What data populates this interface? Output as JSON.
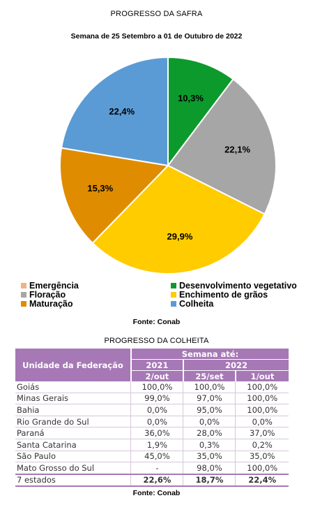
{
  "chart_title": "PROGRESSO DA SAFRA",
  "chart_subtitle": "Semana de 25 Setembro a 01 de Outubro de 2022",
  "chart_data": {
    "type": "pie",
    "title": "PROGRESSO DA SAFRA",
    "subtitle": "Semana de 25 Setembro a 01 de Outubro de 2022",
    "slices": [
      {
        "name": "Emergência",
        "value": 0.0,
        "label": "",
        "color": "#f4b183"
      },
      {
        "name": "Desenvolvimento vegetativo",
        "value": 10.3,
        "label": "10,3%",
        "color": "#0c9a2c"
      },
      {
        "name": "Floração",
        "value": 22.1,
        "label": "22,1%",
        "color": "#a6a6a6"
      },
      {
        "name": "Enchimento de grãos",
        "value": 29.9,
        "label": "29,9%",
        "color": "#ffcc00"
      },
      {
        "name": "Maturação",
        "value": 15.3,
        "label": "15,3%",
        "color": "#e08c00"
      },
      {
        "name": "Colheita",
        "value": 22.4,
        "label": "22,4%",
        "color": "#5b9bd5"
      }
    ],
    "legend_position": "bottom"
  },
  "legend": [
    {
      "name": "Emergência",
      "color": "#f4b183"
    },
    {
      "name": "Desenvolvimento vegetativo",
      "color": "#0c9a2c"
    },
    {
      "name": "Floração",
      "color": "#a6a6a6"
    },
    {
      "name": "Enchimento de grãos",
      "color": "#ffcc00"
    },
    {
      "name": "Maturação",
      "color": "#e08c00"
    },
    {
      "name": "Colheita",
      "color": "#5b9bd5"
    }
  ],
  "source1": "Fonte: Conab",
  "table_title": "PROGRESSO DA COLHEITA",
  "table": {
    "header_unit": "Unidade da Federação",
    "header_week": "Semana até:",
    "year_a": "2021",
    "year_b": "2022",
    "col1": "2/out",
    "col2": "25/set",
    "col3": "1/out",
    "rows": [
      {
        "uf": "Goiás",
        "a": "100,0%",
        "b": "100,0%",
        "c": "100,0%"
      },
      {
        "uf": "Minas Gerais",
        "a": "99,0%",
        "b": "97,0%",
        "c": "100,0%"
      },
      {
        "uf": "Bahia",
        "a": "0,0%",
        "b": "95,0%",
        "c": "100,0%"
      },
      {
        "uf": "Rio Grande do Sul",
        "a": "0,0%",
        "b": "0,0%",
        "c": "0,0%"
      },
      {
        "uf": "Paraná",
        "a": "36,0%",
        "b": "28,0%",
        "c": "37,0%"
      },
      {
        "uf": "Santa Catarina",
        "a": "1,9%",
        "b": "0,3%",
        "c": "0,2%"
      },
      {
        "uf": "São Paulo",
        "a": "45,0%",
        "b": "35,0%",
        "c": "35,0%"
      },
      {
        "uf": "Mato Grosso do Sul",
        "a": "-",
        "b": "98,0%",
        "c": "100,0%"
      }
    ],
    "total": {
      "uf": "7 estados",
      "a": "22,6%",
      "b": "18,7%",
      "c": "22,4%"
    }
  },
  "source2": "Fonte: Conab"
}
